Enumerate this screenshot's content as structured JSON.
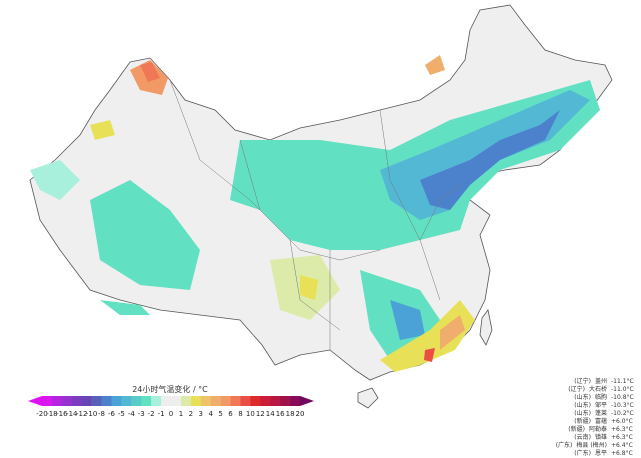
{
  "legend": {
    "title": "24小时气温变化 / °C",
    "ticks": [
      "-20",
      "-18",
      "-16",
      "-14",
      "-12",
      "-10",
      "-8",
      "-6",
      "-5",
      "-4",
      "-3",
      "-2",
      "-1",
      "0",
      "1",
      "2",
      "3",
      "4",
      "5",
      "6",
      "8",
      "10",
      "12",
      "14",
      "16",
      "18",
      "20"
    ],
    "colors": [
      "#d818ee",
      "#b424e0",
      "#9632d0",
      "#7c3cc0",
      "#6646b4",
      "#5860b8",
      "#4c82cc",
      "#4aa2d6",
      "#52b8d4",
      "#5accc8",
      "#62e0c2",
      "#a8f0dc",
      "#eeeeee",
      "#eeeeee",
      "#dcebaa",
      "#e8e056",
      "#eec466",
      "#f0ae6c",
      "#f29a66",
      "#f07856",
      "#ea4e44",
      "#de2a2a",
      "#cc1e3a",
      "#b81842",
      "#a0124a",
      "#880a5a"
    ],
    "under_color": "#e010f8",
    "over_color": "#70085e"
  },
  "cooling_stations": [
    {
      "province": "(辽宁)",
      "name": "盖州",
      "value": "-11.1°C"
    },
    {
      "province": "(辽宁)",
      "name": "大石桥",
      "value": "-11.0°C"
    },
    {
      "province": "(山东)",
      "name": "临朐",
      "value": "-10.8°C"
    },
    {
      "province": "(山东)",
      "name": "邹平",
      "value": "-10.3°C"
    },
    {
      "province": "(山东)",
      "name": "蓬莱",
      "value": "-10.2°C"
    }
  ],
  "warming_stations": [
    {
      "province": "(新疆)",
      "name": "富蕴",
      "value": "+6.0°C"
    },
    {
      "province": "(新疆)",
      "name": "阿勒泰",
      "value": "+6.3°C"
    },
    {
      "province": "(云南)",
      "name": "镇雄",
      "value": "+6.3°C"
    },
    {
      "province": "(广东)",
      "name": "梅县 (梅州)",
      "value": "+6.4°C"
    },
    {
      "province": "(广东)",
      "name": "恩平",
      "value": "+6.8°C"
    }
  ]
}
